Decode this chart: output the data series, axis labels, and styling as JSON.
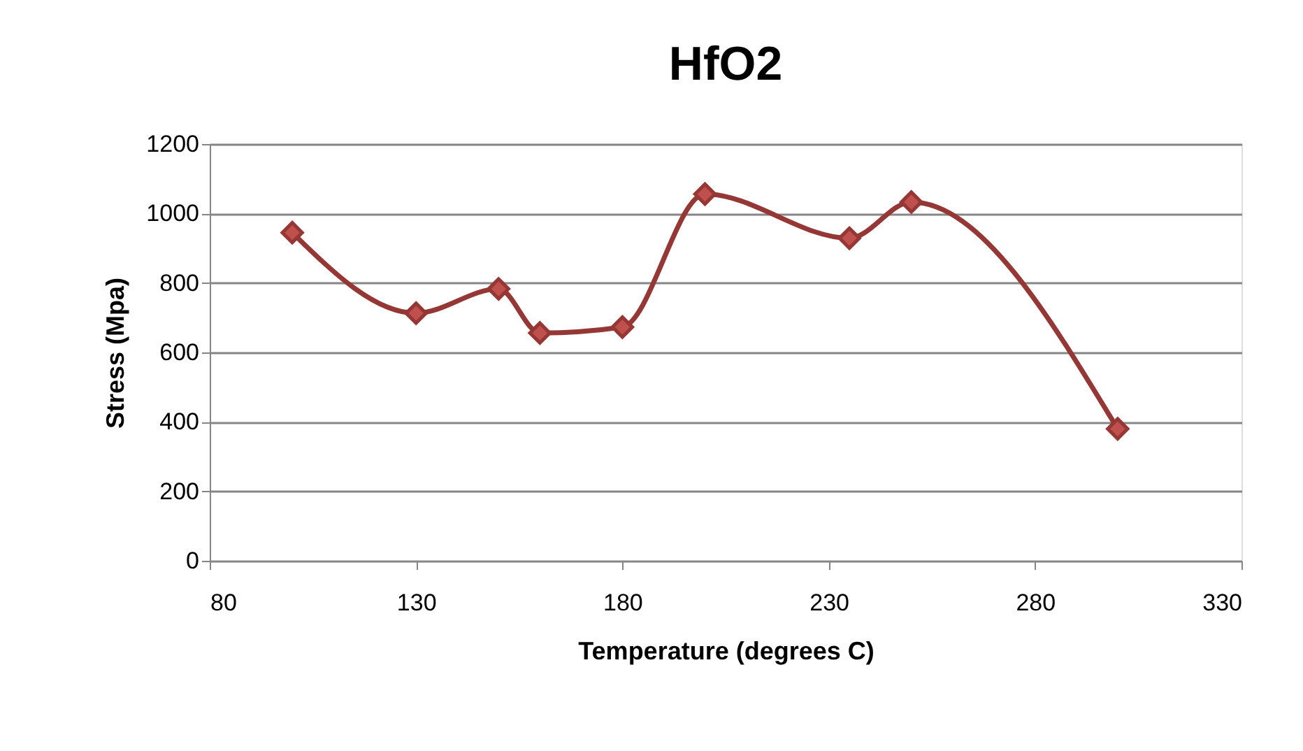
{
  "chart_data": {
    "type": "line",
    "title": "HfO2",
    "xlabel": "Temperature (degrees C)",
    "ylabel": "Stress (Mpa)",
    "x": [
      100,
      130,
      150,
      160,
      180,
      200,
      235,
      250,
      300
    ],
    "series": [
      {
        "color": "#953735",
        "values": [
          945,
          713,
          783,
          656,
          673,
          1056,
          929,
          1033,
          380
        ]
      }
    ],
    "xlim": [
      80,
      330
    ],
    "xticks": [
      80,
      130,
      180,
      230,
      280,
      330
    ],
    "ylim": [
      0,
      1200
    ],
    "yticks": [
      0,
      200,
      400,
      600,
      800,
      1000,
      1200
    ],
    "grid": "y",
    "marker": "diamond",
    "line_style": "solid"
  }
}
